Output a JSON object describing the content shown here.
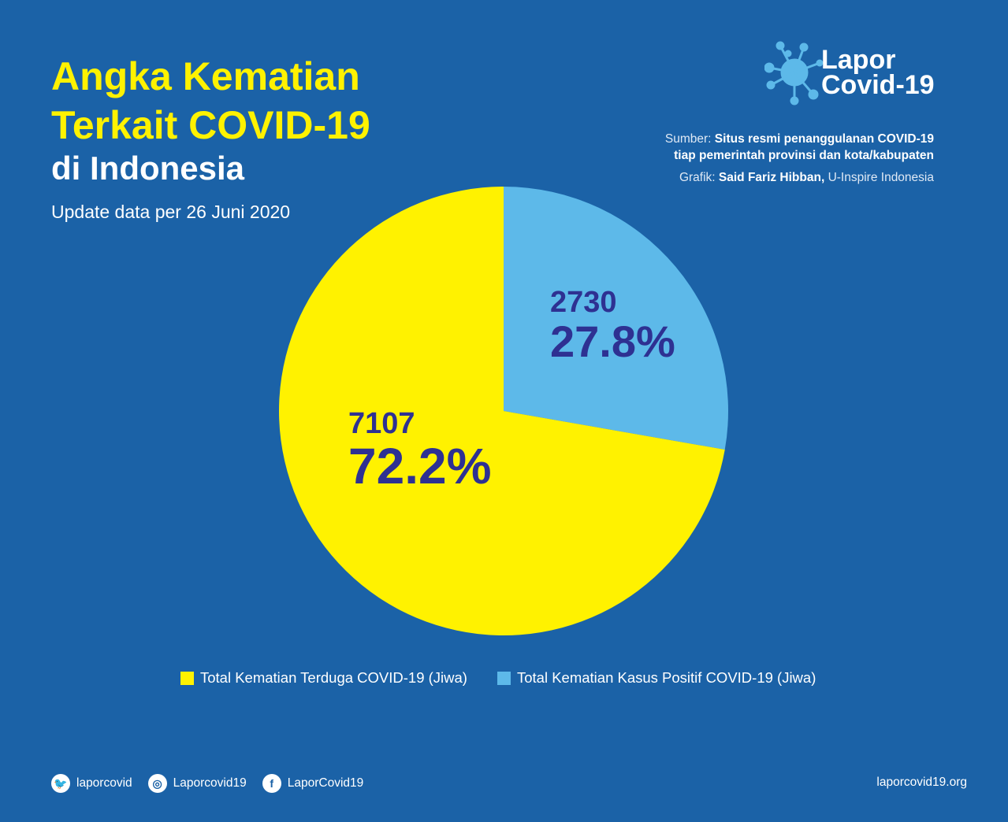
{
  "header": {
    "title_line1": "Angka Kematian",
    "title_line2": "Terkait COVID-19",
    "subtitle": "di Indonesia",
    "update": "Update data per 26 Juni 2020"
  },
  "logo": {
    "line1": "Lapor",
    "line2": "Covid-19"
  },
  "source": {
    "sumber_label": "Sumber:",
    "sumber_line1": "Situs resmi penanggulanan COVID-19",
    "sumber_line2": "tiap pemerintah provinsi dan kota/kabupaten",
    "grafik_label": "Grafik:",
    "grafik_author": "Said Fariz Hibban,",
    "grafik_org": "U-Inspire Indonesia"
  },
  "chart_data": {
    "type": "pie",
    "title": "Angka Kematian Terkait COVID-19 di Indonesia",
    "slices": [
      {
        "name": "Total Kematian Kasus Positif COVID-19 (Jiwa)",
        "value": 2730,
        "percent_label": "27.8%",
        "percent": 27.8,
        "color": "#5db9e9"
      },
      {
        "name": "Total Kematian Terduga COVID-19 (Jiwa)",
        "value": 7107,
        "percent_label": "72.2%",
        "percent": 72.2,
        "color": "#fff200"
      }
    ],
    "legend": [
      "Total Kematian Terduga COVID-19 (Jiwa)",
      "Total Kematian Kasus Positif COVID-19 (Jiwa)"
    ],
    "legend_position": "bottom",
    "label_color": "#2e3192"
  },
  "footer": {
    "twitter": "laporcovid",
    "instagram": "Laporcovid19",
    "facebook": "LaporCovid19",
    "website": "laporcovid19.org"
  }
}
